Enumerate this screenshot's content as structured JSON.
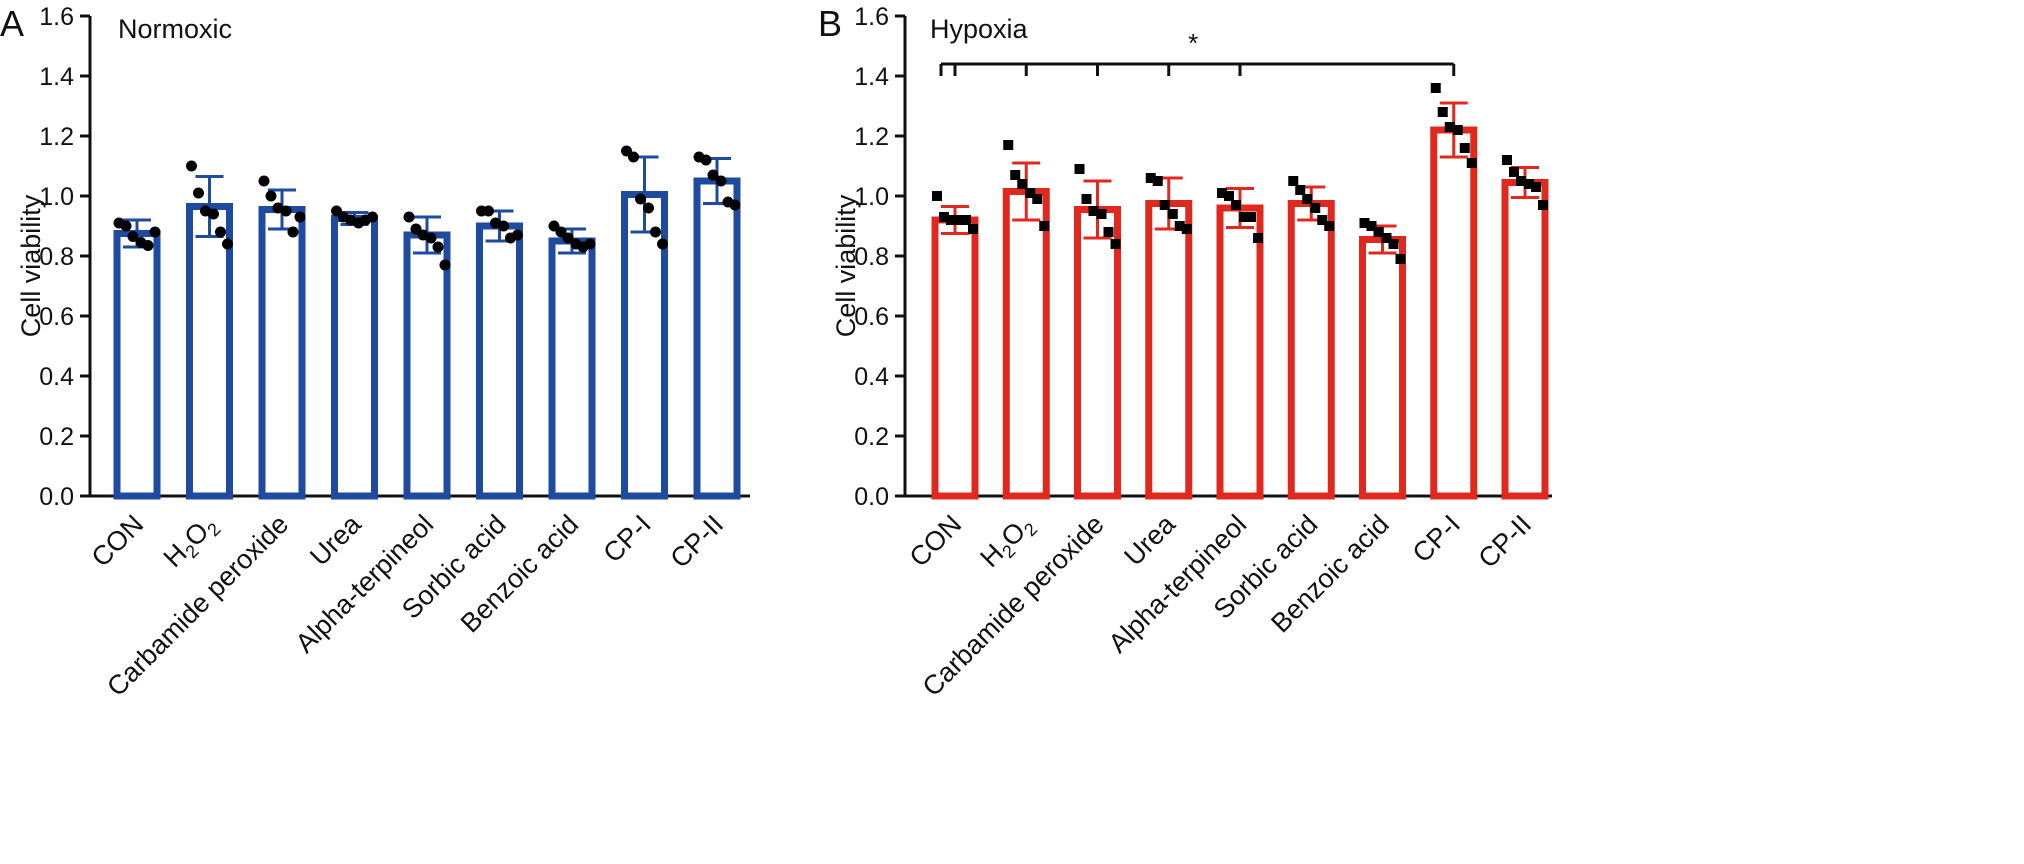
{
  "chart_data": [
    {
      "type": "bar",
      "panel_label": "A",
      "title": "Normoxic",
      "xlabel": "",
      "ylabel": "Cell viability",
      "ylim": [
        0,
        1.6
      ],
      "yticks": [
        "0.0",
        "0.2",
        "0.4",
        "0.6",
        "0.8",
        "1.0",
        "1.2",
        "1.4",
        "1.6"
      ],
      "categories": [
        "CON",
        "H2O2",
        "Carbamide peroxide",
        "Urea",
        "Alpha-terpineol",
        "Sorbic acid",
        "Benzoic acid",
        "CP-I",
        "CP-II"
      ],
      "color": "#1e4aa0",
      "marker": "circle",
      "values": [
        0.875,
        0.965,
        0.955,
        0.925,
        0.87,
        0.9,
        0.85,
        1.005,
        1.05
      ],
      "error": [
        0.045,
        0.1,
        0.065,
        0.02,
        0.06,
        0.05,
        0.04,
        0.125,
        0.075
      ],
      "points": [
        [
          0.91,
          0.9,
          0.865,
          0.845,
          0.835,
          0.88
        ],
        [
          1.1,
          1.01,
          0.95,
          0.94,
          0.88,
          0.84
        ],
        [
          1.05,
          1.0,
          0.96,
          0.95,
          0.88,
          0.93
        ],
        [
          0.95,
          0.93,
          0.92,
          0.91,
          0.92,
          0.93
        ],
        [
          0.93,
          0.89,
          0.87,
          0.86,
          0.83,
          0.77
        ],
        [
          0.95,
          0.95,
          0.91,
          0.9,
          0.86,
          0.87
        ],
        [
          0.9,
          0.88,
          0.86,
          0.84,
          0.83,
          0.84
        ],
        [
          1.15,
          1.13,
          0.99,
          0.96,
          0.88,
          0.84
        ],
        [
          1.13,
          1.12,
          1.07,
          1.05,
          0.98,
          0.97
        ]
      ]
    },
    {
      "type": "bar",
      "panel_label": "B",
      "title": "Hypoxia",
      "xlabel": "",
      "ylabel": "Cell viability",
      "ylim": [
        0,
        1.6
      ],
      "yticks": [
        "0.0",
        "0.2",
        "0.4",
        "0.6",
        "0.8",
        "1.0",
        "1.2",
        "1.4",
        "1.6"
      ],
      "categories": [
        "CON",
        "H2O2",
        "Carbamide peroxide",
        "Urea",
        "Alpha-terpineol",
        "Sorbic acid",
        "Benzoic acid",
        "CP-I",
        "CP-II"
      ],
      "color": "#e0281f",
      "marker": "square",
      "values": [
        0.92,
        1.015,
        0.955,
        0.975,
        0.96,
        0.975,
        0.855,
        1.22,
        1.045
      ],
      "error": [
        0.045,
        0.095,
        0.095,
        0.085,
        0.065,
        0.055,
        0.045,
        0.09,
        0.05
      ],
      "points": [
        [
          1.0,
          0.93,
          0.92,
          0.92,
          0.92,
          0.89
        ],
        [
          1.17,
          1.07,
          1.04,
          1.01,
          0.99,
          0.9
        ],
        [
          1.09,
          0.99,
          0.95,
          0.94,
          0.88,
          0.84
        ],
        [
          1.06,
          1.05,
          0.97,
          0.94,
          0.9,
          0.89
        ],
        [
          1.01,
          1.0,
          0.97,
          0.93,
          0.93,
          0.86
        ],
        [
          1.05,
          1.02,
          0.99,
          0.96,
          0.92,
          0.9
        ],
        [
          0.91,
          0.9,
          0.88,
          0.86,
          0.84,
          0.79
        ],
        [
          1.36,
          1.28,
          1.23,
          1.22,
          1.16,
          1.11
        ],
        [
          1.12,
          1.08,
          1.05,
          1.04,
          1.03,
          0.97
        ]
      ],
      "significance": {
        "label": "*",
        "from": [
          "CON",
          "H2O2",
          "Carbamide peroxide",
          "Urea",
          "Alpha-terpineol"
        ],
        "to": "CP-I",
        "level": 1.44
      }
    }
  ]
}
